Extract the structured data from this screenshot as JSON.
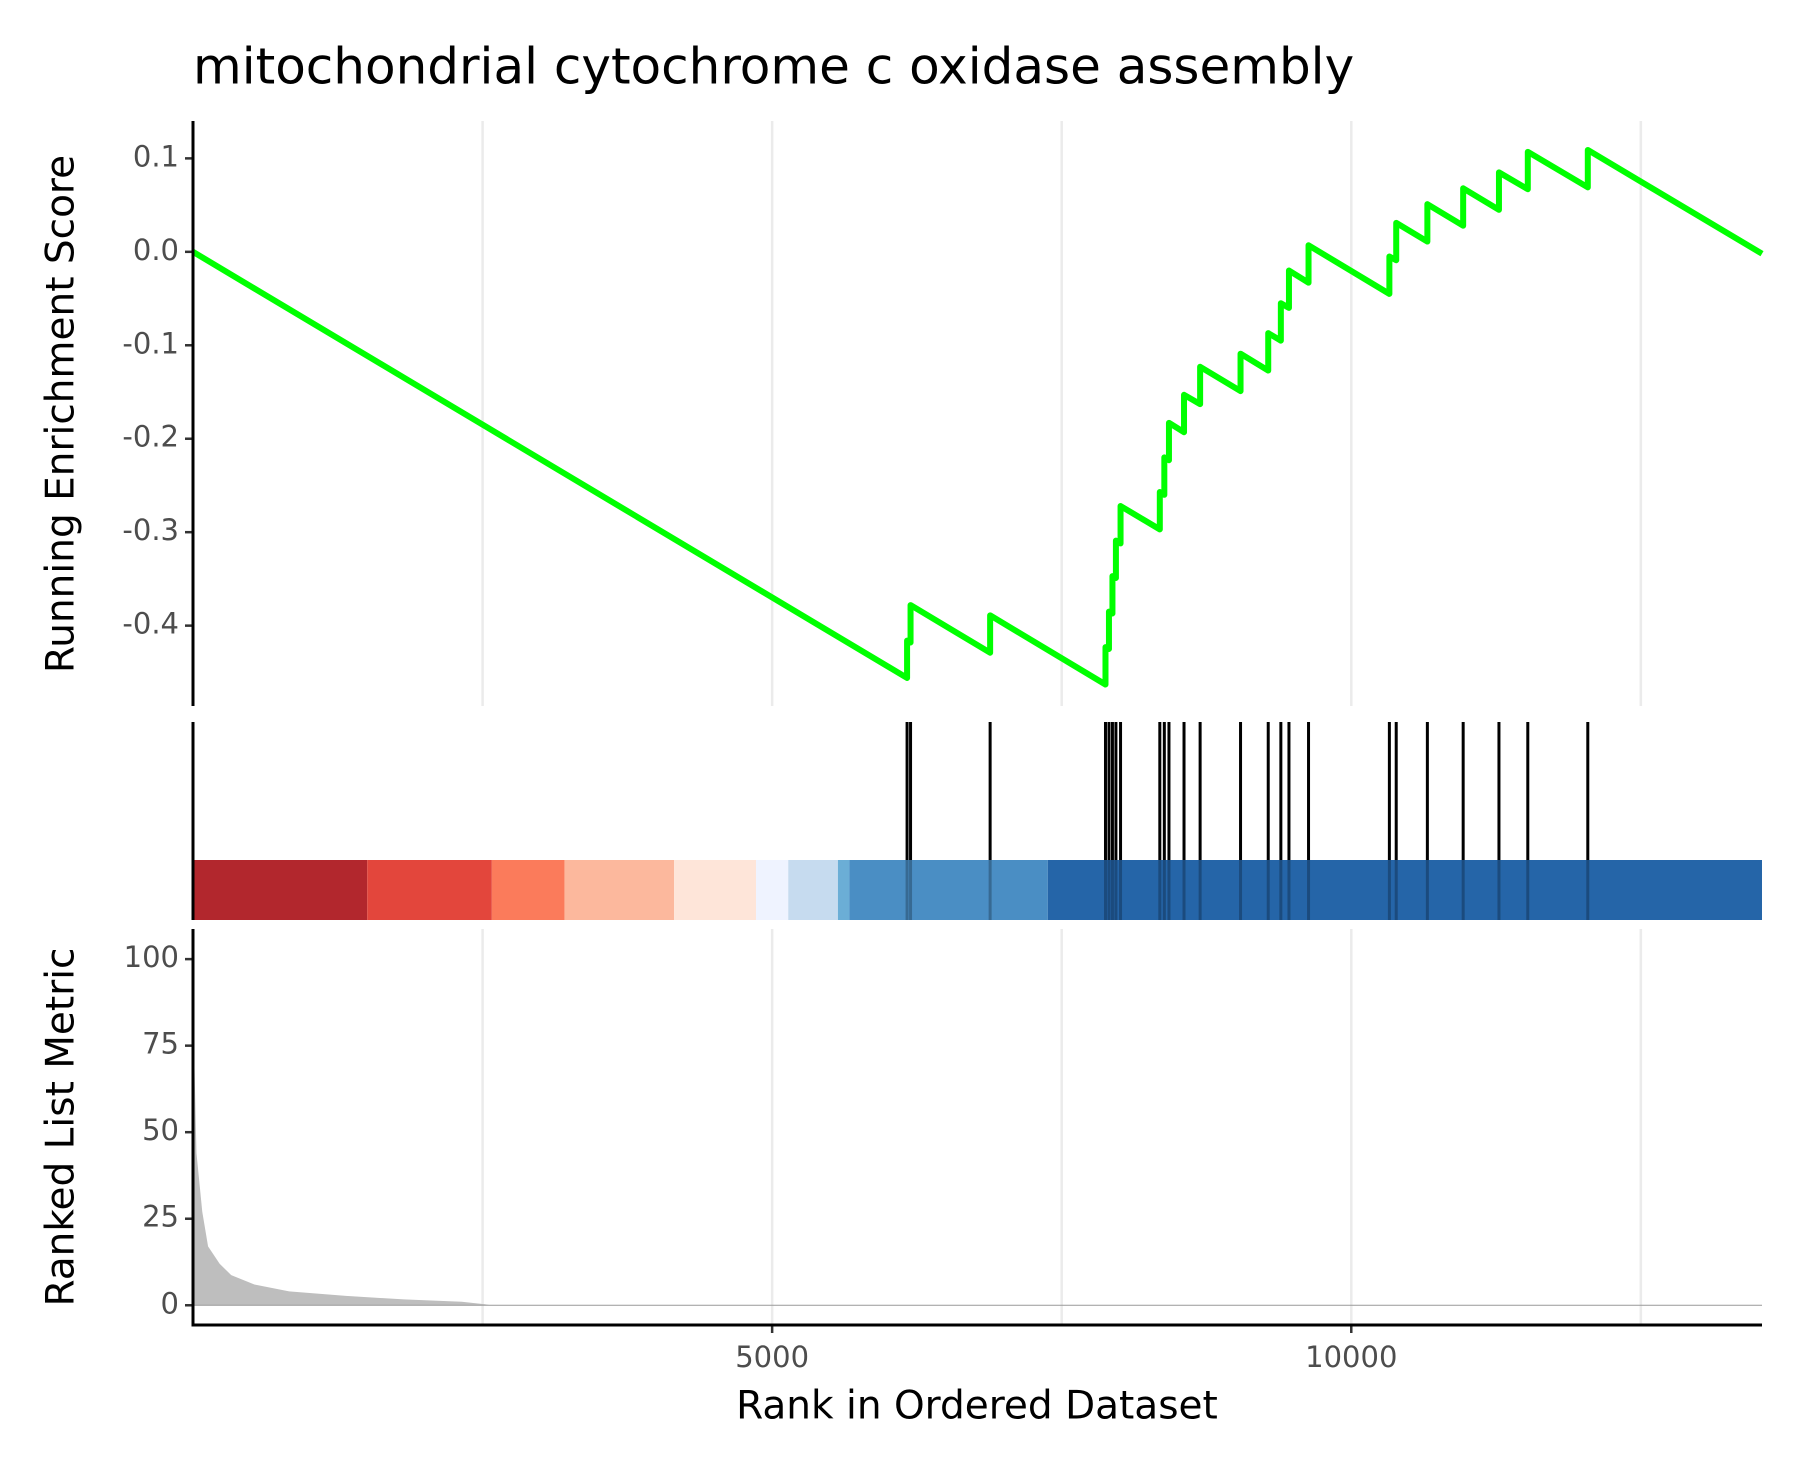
{
  "chart_data": [
    {
      "type": "line",
      "title": "mitochondrial cytochrome c oxidase assembly",
      "ylabel": "Running Enrichment Score",
      "color": "#00ff00",
      "x": [
        0,
        6165,
        6165,
        6195,
        6195,
        6882,
        6882,
        7878,
        7878,
        7908,
        7908,
        7938,
        7938,
        7968,
        7968,
        8008,
        8008,
        8347,
        8347,
        8386,
        8386,
        8426,
        8426,
        8556,
        8556,
        8695,
        8695,
        9044,
        9044,
        9283,
        9283,
        9392,
        9392,
        9462,
        9462,
        9631,
        9631,
        10329,
        10329,
        10388,
        10388,
        10657,
        10657,
        10966,
        10966,
        11275,
        11275,
        11524,
        11524,
        12042,
        12042,
        13546
      ],
      "values": [
        0,
        -0.456,
        -0.416,
        -0.418,
        -0.378,
        -0.429,
        -0.389,
        -0.463,
        -0.423,
        -0.425,
        -0.385,
        -0.387,
        -0.347,
        -0.349,
        -0.309,
        -0.312,
        -0.272,
        -0.297,
        -0.257,
        -0.26,
        -0.22,
        -0.223,
        -0.183,
        -0.193,
        -0.153,
        -0.163,
        -0.123,
        -0.149,
        -0.109,
        -0.127,
        -0.087,
        -0.095,
        -0.055,
        -0.06,
        -0.02,
        -0.033,
        0.007,
        -0.045,
        -0.005,
        -0.009,
        0.031,
        0.011,
        0.051,
        0.028,
        0.068,
        0.045,
        0.085,
        0.067,
        0.107,
        0.069,
        0.109,
        -0.002
      ],
      "xlim": [
        0,
        13546
      ],
      "ylim": [
        -0.486,
        0.14
      ],
      "yticks": [
        0.1,
        {
          "value": 0,
          "label": "0.0"
        },
        -0.1,
        -0.2,
        -0.3,
        -0.4
      ],
      "xgrid": [
        2500,
        5000,
        7500,
        10000,
        12500
      ]
    },
    {
      "type": "rug",
      "color": "#000000",
      "hits": [
        6165,
        6195,
        6882,
        7878,
        7908,
        7938,
        7968,
        8008,
        8347,
        8386,
        8426,
        8556,
        8695,
        9044,
        9283,
        9392,
        9462,
        9631,
        10329,
        10388,
        10657,
        10966,
        11275,
        11524,
        12042
      ],
      "bins": [
        0,
        1504,
        2580,
        3207,
        4153,
        4861,
        5139,
        5568,
        5667,
        7380,
        13546
      ],
      "bin_colors": [
        "#b2272d",
        "#e3463c",
        "#fb7b5b",
        "#fcb89d",
        "#fee5d9",
        "#eff3ff",
        "#c6dbef",
        "#6baed6",
        "#4a8ec4",
        "#2565a8"
      ],
      "xlim": [
        0,
        13546
      ]
    },
    {
      "type": "area",
      "ylabel": "Ranked List Metric",
      "xlabel": "Rank in Ordered Dataset",
      "color": "#bebebe",
      "x": [
        0,
        30,
        80,
        130,
        230,
        330,
        530,
        830,
        1320,
        1820,
        2320,
        2520,
        2570,
        13546
      ],
      "values": [
        87,
        44,
        27,
        17,
        12,
        8.7,
        6,
        4,
        2.7,
        1.7,
        1,
        0.3,
        0,
        0
      ],
      "xlim": [
        0,
        13546
      ],
      "ylim": [
        -5.7,
        108.7
      ],
      "yticks": [
        0,
        25,
        50,
        75,
        100
      ],
      "xticks": [
        5000,
        10000
      ],
      "xgrid": [
        2500,
        5000,
        7500,
        10000,
        12500
      ]
    }
  ]
}
